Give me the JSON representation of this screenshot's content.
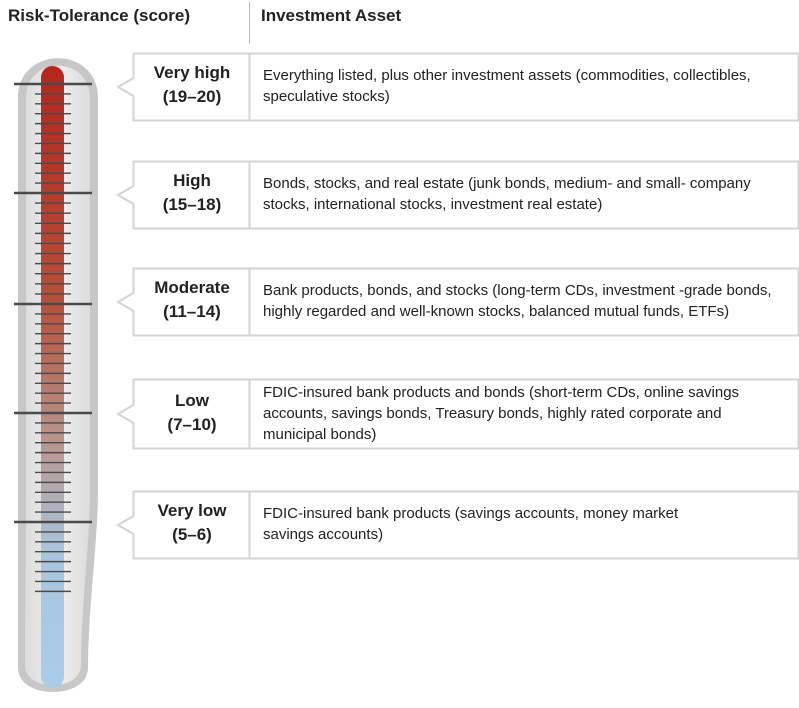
{
  "header": {
    "left_title": "Risk-Tolerance (score)",
    "right_title": "Investment Asset"
  },
  "colors": {
    "box_border": "#d4d4d4",
    "thermo_outer": "#c7c7c7",
    "thermo_inner": "#e9e9e9",
    "mercury_top": "#b3261e",
    "mercury_bottom": "#a9cdeb",
    "tick": "#4a4a4a"
  },
  "icon": "thermometer-icon",
  "levels": [
    {
      "name": "Very high",
      "score": "(19–20)",
      "lines": [
        "Everything listed, plus other investment assets (commodities, collectibles,",
        "speculative stocks)"
      ]
    },
    {
      "name": "High",
      "score": "(15–18)",
      "lines": [
        "Bonds, stocks, and real estate (junk bonds, medium- and small- company",
        "stocks, international stocks, investment real  estate)"
      ]
    },
    {
      "name": "Moderate",
      "score": "(11–14)",
      "lines": [
        "Bank products, bonds, and stocks (long-term CDs, investment -grade bonds,",
        "highly regarded and well-known stocks, balanced mutual funds, ETFs)"
      ]
    },
    {
      "name": "Low",
      "score": "(7–10)",
      "lines": [
        "FDIC-insured bank products and bonds (short-term CDs, online savings",
        "accounts, savings bonds, Treasury bonds, highly rated corporate and",
        "municipal bonds)"
      ]
    },
    {
      "name": "Very low",
      "score": "(5–6)",
      "lines": [
        "FDIC-insured bank products (savings accounts, money market",
        "savings accounts)"
      ]
    }
  ]
}
